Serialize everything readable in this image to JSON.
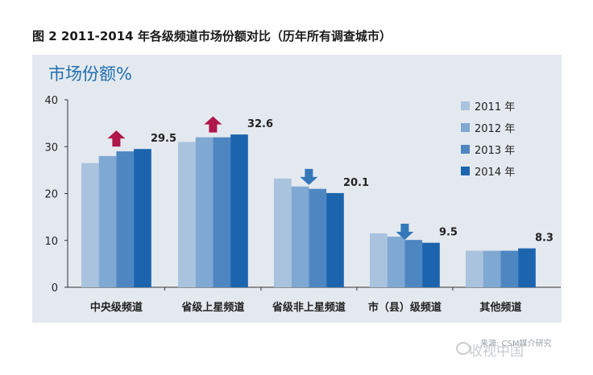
{
  "figure_title": "图 2  2011-2014 年各级频道市场份额对比（历年所有调查城市）",
  "source_note": "来源: CSM媒介研究",
  "watermark": "收视中国",
  "chart_data": {
    "type": "bar",
    "ylabel": "市场份额%",
    "xlabel": "",
    "ylim": [
      0,
      40
    ],
    "yticks": [
      0,
      10,
      20,
      30,
      40
    ],
    "grid": false,
    "legend_position": "right",
    "categories": [
      "中央级频道",
      "省级上星频道",
      "省级非上星频道",
      "市（县）级频道",
      "其他频道"
    ],
    "series": [
      {
        "name": "2011 年",
        "color": "#a9c3de",
        "values": [
          26.5,
          31.0,
          23.2,
          11.5,
          7.8
        ]
      },
      {
        "name": "2012 年",
        "color": "#7fa8d2",
        "values": [
          28.0,
          32.0,
          21.5,
          10.8,
          7.8
        ]
      },
      {
        "name": "2013 年",
        "color": "#4e86c2",
        "values": [
          29.0,
          32.0,
          21.0,
          10.1,
          7.8
        ]
      },
      {
        "name": "2014 年",
        "color": "#1c64ae",
        "values": [
          29.5,
          32.6,
          20.1,
          9.5,
          8.3
        ]
      }
    ],
    "data_labels": [
      "29.5",
      "32.6",
      "20.1",
      "9.5",
      "8.3"
    ],
    "trend_arrows": [
      "up",
      "up",
      "down",
      "down",
      "none"
    ],
    "arrow_colors": {
      "up": "#b0174a",
      "down": "#3478b9"
    }
  }
}
